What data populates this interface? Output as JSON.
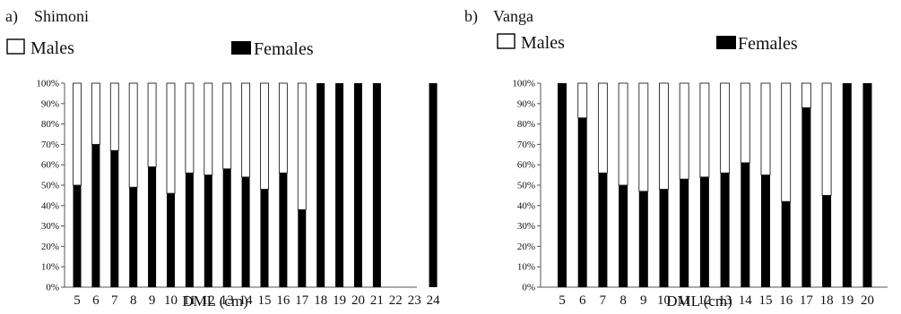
{
  "legend": {
    "males": "Males",
    "females": "Females"
  },
  "chart_data": [
    {
      "type": "bar",
      "stacked": "percent",
      "panel_label": "a)",
      "title": "Shimoni",
      "xlabel": "DML (cm)",
      "ylabel": "",
      "ylim": [
        0,
        100
      ],
      "yticks": [
        "0%",
        "10%",
        "20%",
        "30%",
        "40%",
        "50%",
        "60%",
        "70%",
        "80%",
        "90%",
        "100%"
      ],
      "categories": [
        "5",
        "6",
        "7",
        "8",
        "9",
        "10",
        "11",
        "12",
        "13",
        "14",
        "15",
        "16",
        "17",
        "18",
        "19",
        "20",
        "21",
        "22",
        "23",
        "24"
      ],
      "series": [
        {
          "name": "Females",
          "color": "#000000",
          "values": [
            50,
            70,
            67,
            49,
            59,
            46,
            56,
            55,
            58,
            54,
            48,
            56,
            38,
            100,
            100,
            100,
            100,
            0,
            0,
            100
          ]
        },
        {
          "name": "Males",
          "color": "#ffffff",
          "values": [
            50,
            30,
            33,
            51,
            41,
            54,
            44,
            45,
            42,
            46,
            52,
            44,
            62,
            0,
            0,
            0,
            0,
            0,
            0,
            0
          ]
        }
      ],
      "grid": false,
      "legend_position": "top"
    },
    {
      "type": "bar",
      "stacked": "percent",
      "panel_label": "b)",
      "title": "Vanga",
      "xlabel": "DML (cm)",
      "ylabel": "",
      "ylim": [
        0,
        100
      ],
      "yticks": [
        "0%",
        "10%",
        "20%",
        "30%",
        "40%",
        "50%",
        "60%",
        "70%",
        "80%",
        "90%",
        "100%"
      ],
      "categories": [
        "5",
        "6",
        "7",
        "8",
        "9",
        "10",
        "11",
        "12",
        "13",
        "14",
        "15",
        "16",
        "17",
        "18",
        "19",
        "20"
      ],
      "series": [
        {
          "name": "Females",
          "color": "#000000",
          "values": [
            100,
            83,
            56,
            50,
            47,
            48,
            53,
            54,
            56,
            61,
            55,
            42,
            88,
            45,
            100,
            100
          ]
        },
        {
          "name": "Males",
          "color": "#ffffff",
          "values": [
            0,
            17,
            44,
            50,
            53,
            52,
            47,
            46,
            44,
            39,
            45,
            58,
            12,
            55,
            0,
            0
          ]
        }
      ],
      "grid": false,
      "legend_position": "top"
    }
  ]
}
